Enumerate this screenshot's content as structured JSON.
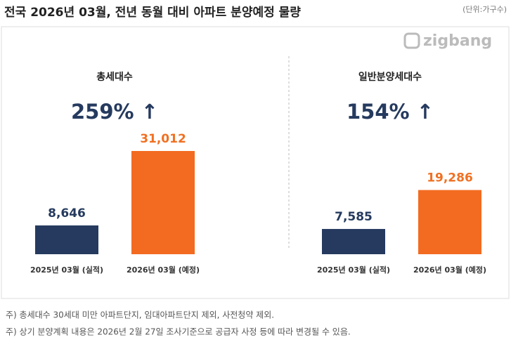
{
  "title": "전국 2026년 03월, 전년 동월 대비 아파트 분양예정 물량",
  "unit": "(단위:가구수)",
  "logo": "zigbang",
  "notes": [
    "주) 총세대수 30세대 미만 아파트단지, 임대아파트단지 제외, 사전청약 제외.",
    "주) 상기 분양계획 내용은 2026년 2월 27일 조사기준으로 공급자 사정 등에 따라 변경될 수 있음."
  ],
  "chart_data": [
    {
      "type": "bar",
      "title": "총세대수",
      "annotation": "259% ↑",
      "categories": [
        "2025년 03월 (실적)",
        "2026년 03월 (예정)"
      ],
      "values": [
        8646,
        31012
      ],
      "value_labels": [
        "8,646",
        "31,012"
      ],
      "colors": [
        "#253a5e",
        "#f26b21"
      ]
    },
    {
      "type": "bar",
      "title": "일반분양세대수",
      "annotation": "154% ↑",
      "categories": [
        "2025년 03월 (실적)",
        "2026년 03월 (예정)"
      ],
      "values": [
        7585,
        19286
      ],
      "value_labels": [
        "7,585",
        "19,286"
      ],
      "colors": [
        "#253a5e",
        "#f26b21"
      ]
    }
  ]
}
